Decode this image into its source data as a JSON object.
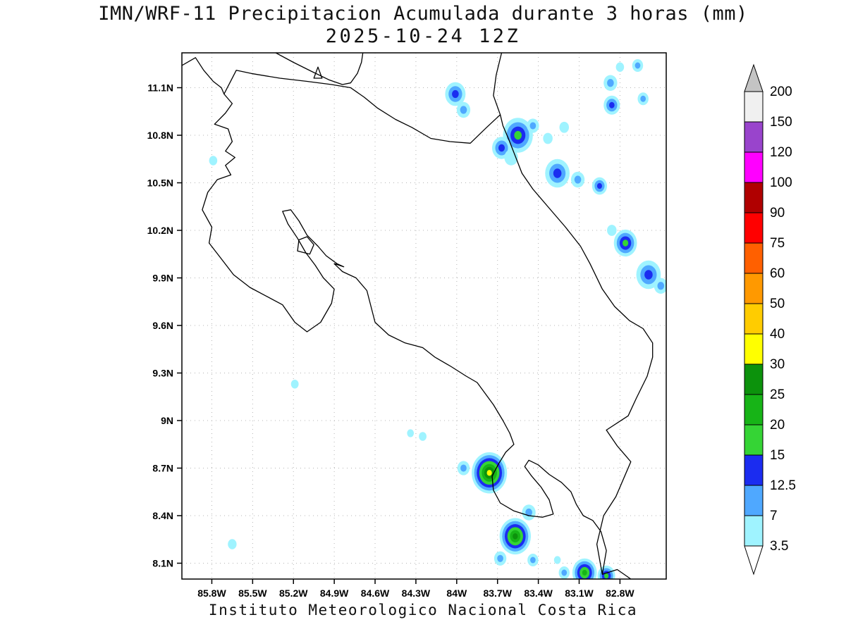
{
  "title": "IMN/WRF-11 Precipitacion Acumulada durante 3 horas (mm)",
  "subtitle": "2025-10-24 12Z",
  "footer": "Instituto Meteorologico Nacional Costa Rica",
  "axes": {
    "x": {
      "labels": [
        "85.8W",
        "85.5W",
        "85.2W",
        "84.9W",
        "84.6W",
        "84.3W",
        "84W",
        "83.7W",
        "83.4W",
        "83.1W",
        "82.8W"
      ],
      "values": [
        -85.8,
        -85.5,
        -85.2,
        -84.9,
        -84.6,
        -84.3,
        -84.0,
        -83.7,
        -83.4,
        -83.1,
        -82.8
      ]
    },
    "y": {
      "labels": [
        "11.1N",
        "10.8N",
        "10.5N",
        "10.2N",
        "9.9N",
        "9.6N",
        "9.3N",
        "9N",
        "8.7N",
        "8.4N",
        "8.1N"
      ],
      "values": [
        11.1,
        10.8,
        10.5,
        10.2,
        9.9,
        9.6,
        9.3,
        9.0,
        8.7,
        8.4,
        8.1
      ]
    },
    "lon_range": [
      -86.02,
      -82.46
    ],
    "lat_range": [
      8.0,
      11.32
    ],
    "grid": "dotted"
  },
  "colorbar": {
    "values": [
      3.5,
      7,
      12.5,
      15,
      20,
      25,
      30,
      40,
      50,
      60,
      75,
      90,
      100,
      120,
      150,
      200
    ],
    "labels": [
      "3.5",
      "7",
      "12.5",
      "15",
      "20",
      "25",
      "30",
      "40",
      "50",
      "60",
      "75",
      "90",
      "100",
      "120",
      "150",
      "200"
    ],
    "interval_colors": [
      "#9ff3ff",
      "#4fa8ff",
      "#1b2cf0",
      "#35d435",
      "#17b417",
      "#0c920c",
      "#ffff00",
      "#ffcc00",
      "#ff9900",
      "#ff6000",
      "#ff0000",
      "#b00000",
      "#ff00ff",
      "#9944cc",
      "#f0f0f0"
    ],
    "below_color": "#ffffff",
    "above_color": "#c4c4c4",
    "units": "mm"
  },
  "chart_data": {
    "type": "heatmap",
    "title": "IMN/WRF-11 Precipitacion Acumulada durante 3 horas (mm)",
    "subtitle": "2025-10-24 12Z",
    "variable": "Precipitacion acumulada 3 horas",
    "units": "mm",
    "valid_time": "2025-10-24 12Z",
    "lon_range": [
      -86.02,
      -82.46
    ],
    "lat_range": [
      8.0,
      11.32
    ],
    "levels": [
      3.5,
      7,
      12.5,
      15,
      20,
      25,
      30,
      40,
      50,
      60,
      75,
      90,
      100,
      120,
      150,
      200
    ],
    "legend_position": "right",
    "cells": [
      {
        "lon": -84.01,
        "lat": 11.06,
        "r": 0.075,
        "max_mm": 12.5
      },
      {
        "lon": -83.95,
        "lat": 10.96,
        "r": 0.05,
        "max_mm": 7
      },
      {
        "lon": -83.55,
        "lat": 10.8,
        "r": 0.11,
        "max_mm": 15
      },
      {
        "lon": -83.67,
        "lat": 10.72,
        "r": 0.07,
        "max_mm": 12.5
      },
      {
        "lon": -83.44,
        "lat": 10.86,
        "r": 0.045,
        "max_mm": 7
      },
      {
        "lon": -83.33,
        "lat": 10.78,
        "r": 0.035,
        "max_mm": 3.5
      },
      {
        "lon": -83.6,
        "lat": 10.66,
        "r": 0.05,
        "max_mm": 3.5
      },
      {
        "lon": -83.21,
        "lat": 10.85,
        "r": 0.035,
        "max_mm": 3.5
      },
      {
        "lon": -83.26,
        "lat": 10.56,
        "r": 0.09,
        "max_mm": 12.5
      },
      {
        "lon": -83.11,
        "lat": 10.52,
        "r": 0.05,
        "max_mm": 7
      },
      {
        "lon": -82.95,
        "lat": 10.48,
        "r": 0.055,
        "max_mm": 12.5
      },
      {
        "lon": -82.87,
        "lat": 11.13,
        "r": 0.05,
        "max_mm": 7
      },
      {
        "lon": -82.86,
        "lat": 10.99,
        "r": 0.06,
        "max_mm": 12.5
      },
      {
        "lon": -82.67,
        "lat": 11.24,
        "r": 0.04,
        "max_mm": 7
      },
      {
        "lon": -82.8,
        "lat": 11.23,
        "r": 0.03,
        "max_mm": 3.5
      },
      {
        "lon": -82.63,
        "lat": 11.03,
        "r": 0.04,
        "max_mm": 7
      },
      {
        "lon": -82.76,
        "lat": 10.12,
        "r": 0.085,
        "max_mm": 15
      },
      {
        "lon": -82.86,
        "lat": 10.2,
        "r": 0.035,
        "max_mm": 3.5
      },
      {
        "lon": -82.59,
        "lat": 9.92,
        "r": 0.09,
        "max_mm": 12.5
      },
      {
        "lon": -82.5,
        "lat": 9.85,
        "r": 0.05,
        "max_mm": 7
      },
      {
        "lon": -85.79,
        "lat": 10.64,
        "r": 0.03,
        "max_mm": 3.5
      },
      {
        "lon": -85.19,
        "lat": 9.23,
        "r": 0.028,
        "max_mm": 3.5
      },
      {
        "lon": -85.65,
        "lat": 8.22,
        "r": 0.032,
        "max_mm": 3.5
      },
      {
        "lon": -83.76,
        "lat": 8.67,
        "r": 0.13,
        "max_mm": 30
      },
      {
        "lon": -83.95,
        "lat": 8.7,
        "r": 0.045,
        "max_mm": 7
      },
      {
        "lon": -84.25,
        "lat": 8.9,
        "r": 0.028,
        "max_mm": 3.5
      },
      {
        "lon": -84.34,
        "lat": 8.92,
        "r": 0.025,
        "max_mm": 3.5
      },
      {
        "lon": -83.57,
        "lat": 8.27,
        "r": 0.115,
        "max_mm": 25
      },
      {
        "lon": -83.47,
        "lat": 8.42,
        "r": 0.05,
        "max_mm": 7
      },
      {
        "lon": -83.68,
        "lat": 8.13,
        "r": 0.045,
        "max_mm": 7
      },
      {
        "lon": -83.44,
        "lat": 8.12,
        "r": 0.04,
        "max_mm": 7
      },
      {
        "lon": -83.06,
        "lat": 8.04,
        "r": 0.09,
        "max_mm": 20
      },
      {
        "lon": -82.9,
        "lat": 8.02,
        "r": 0.065,
        "max_mm": 15
      },
      {
        "lon": -83.21,
        "lat": 8.04,
        "r": 0.04,
        "max_mm": 7
      },
      {
        "lon": -83.26,
        "lat": 8.12,
        "r": 0.025,
        "max_mm": 3.5
      }
    ]
  },
  "geo": {
    "layers": [
      {
        "name": "nicaragua-pacific-coast",
        "closed": false,
        "points": [
          [
            -86.02,
            11.24
          ],
          [
            -85.92,
            11.29
          ],
          [
            -85.86,
            11.21
          ],
          [
            -85.79,
            11.14
          ],
          [
            -85.73,
            11.1
          ],
          [
            -85.71,
            11.06
          ]
        ]
      },
      {
        "name": "costa-rica-outline",
        "closed": true,
        "points": [
          [
            -85.71,
            11.06
          ],
          [
            -85.65,
            11.0
          ],
          [
            -85.7,
            10.94
          ],
          [
            -85.78,
            10.87
          ],
          [
            -85.68,
            10.84
          ],
          [
            -85.65,
            10.76
          ],
          [
            -85.7,
            10.7
          ],
          [
            -85.63,
            10.66
          ],
          [
            -85.7,
            10.61
          ],
          [
            -85.66,
            10.55
          ],
          [
            -85.76,
            10.52
          ],
          [
            -85.83,
            10.44
          ],
          [
            -85.87,
            10.33
          ],
          [
            -85.8,
            10.22
          ],
          [
            -85.82,
            10.12
          ],
          [
            -85.73,
            10.02
          ],
          [
            -85.64,
            9.92
          ],
          [
            -85.52,
            9.84
          ],
          [
            -85.41,
            9.79
          ],
          [
            -85.28,
            9.73
          ],
          [
            -85.19,
            9.62
          ],
          [
            -85.1,
            9.56
          ],
          [
            -85.0,
            9.62
          ],
          [
            -84.92,
            9.74
          ],
          [
            -84.9,
            9.83
          ],
          [
            -84.98,
            9.9
          ],
          [
            -85.04,
            9.98
          ],
          [
            -85.11,
            10.06
          ],
          [
            -85.17,
            10.15
          ],
          [
            -85.24,
            10.24
          ],
          [
            -85.28,
            10.32
          ],
          [
            -85.22,
            10.33
          ],
          [
            -85.16,
            10.26
          ],
          [
            -85.1,
            10.17
          ],
          [
            -85.02,
            10.1
          ],
          [
            -84.96,
            10.04
          ],
          [
            -84.88,
            9.99
          ],
          [
            -84.83,
            9.97
          ],
          [
            -84.9,
            9.99
          ],
          [
            -84.84,
            9.94
          ],
          [
            -84.74,
            9.9
          ],
          [
            -84.66,
            9.82
          ],
          [
            -84.63,
            9.72
          ],
          [
            -84.6,
            9.62
          ],
          [
            -84.5,
            9.54
          ],
          [
            -84.38,
            9.49
          ],
          [
            -84.25,
            9.46
          ],
          [
            -84.16,
            9.4
          ],
          [
            -84.04,
            9.34
          ],
          [
            -83.93,
            9.28
          ],
          [
            -83.85,
            9.24
          ],
          [
            -83.73,
            9.1
          ],
          [
            -83.66,
            9.0
          ],
          [
            -83.61,
            8.92
          ],
          [
            -83.58,
            8.85
          ],
          [
            -83.64,
            8.8
          ],
          [
            -83.69,
            8.73
          ],
          [
            -83.74,
            8.65
          ],
          [
            -83.73,
            8.56
          ],
          [
            -83.68,
            8.48
          ],
          [
            -83.58,
            8.43
          ],
          [
            -83.47,
            8.4
          ],
          [
            -83.37,
            8.39
          ],
          [
            -83.29,
            8.41
          ],
          [
            -83.32,
            8.5
          ],
          [
            -83.38,
            8.58
          ],
          [
            -83.45,
            8.65
          ],
          [
            -83.5,
            8.71
          ],
          [
            -83.47,
            8.75
          ],
          [
            -83.4,
            8.72
          ],
          [
            -83.32,
            8.66
          ],
          [
            -83.23,
            8.61
          ],
          [
            -83.16,
            8.55
          ],
          [
            -83.12,
            8.47
          ],
          [
            -83.07,
            8.4
          ],
          [
            -83.0,
            8.37
          ],
          [
            -82.94,
            8.3
          ],
          [
            -82.9,
            8.18
          ],
          [
            -82.93,
            8.03
          ],
          [
            -82.97,
            8.22
          ],
          [
            -82.92,
            8.4
          ],
          [
            -82.83,
            8.52
          ],
          [
            -82.72,
            8.74
          ],
          [
            -82.82,
            8.84
          ],
          [
            -82.9,
            8.94
          ],
          [
            -82.74,
            9.03
          ],
          [
            -82.68,
            9.14
          ],
          [
            -82.6,
            9.28
          ],
          [
            -82.56,
            9.4
          ],
          [
            -82.56,
            9.49
          ],
          [
            -82.63,
            9.58
          ],
          [
            -82.73,
            9.63
          ],
          [
            -82.84,
            9.72
          ],
          [
            -82.93,
            9.83
          ],
          [
            -83.02,
            9.99
          ],
          [
            -83.09,
            10.1
          ],
          [
            -83.2,
            10.22
          ],
          [
            -83.32,
            10.34
          ],
          [
            -83.44,
            10.46
          ],
          [
            -83.52,
            10.56
          ],
          [
            -83.57,
            10.67
          ],
          [
            -83.62,
            10.78
          ],
          [
            -83.66,
            10.86
          ],
          [
            -83.68,
            10.93
          ],
          [
            -83.78,
            10.85
          ],
          [
            -83.9,
            10.75
          ],
          [
            -84.05,
            10.76
          ],
          [
            -84.19,
            10.78
          ],
          [
            -84.33,
            10.85
          ],
          [
            -84.45,
            10.9
          ],
          [
            -84.58,
            10.97
          ],
          [
            -84.68,
            11.04
          ],
          [
            -84.78,
            11.1
          ],
          [
            -84.92,
            11.12
          ],
          [
            -85.1,
            11.14
          ],
          [
            -85.3,
            11.16
          ],
          [
            -85.51,
            11.19
          ],
          [
            -85.62,
            11.21
          ]
        ]
      },
      {
        "name": "lake-nicaragua-shore",
        "closed": false,
        "points": [
          [
            -85.33,
            11.32
          ],
          [
            -85.2,
            11.26
          ],
          [
            -85.06,
            11.2
          ],
          [
            -84.94,
            11.15
          ],
          [
            -84.84,
            11.12
          ],
          [
            -84.78,
            11.13
          ],
          [
            -84.73,
            11.19
          ],
          [
            -84.7,
            11.26
          ],
          [
            -84.69,
            11.32
          ]
        ]
      },
      {
        "name": "lake-island",
        "closed": true,
        "points": [
          [
            -85.05,
            11.16
          ],
          [
            -84.99,
            11.16
          ],
          [
            -85.02,
            11.23
          ]
        ]
      },
      {
        "name": "nicaragua-caribbean-coast",
        "closed": false,
        "points": [
          [
            -83.68,
            10.93
          ],
          [
            -83.73,
            11.05
          ],
          [
            -83.71,
            11.18
          ],
          [
            -83.67,
            11.32
          ]
        ]
      },
      {
        "name": "isla-chira",
        "closed": true,
        "points": [
          [
            -85.17,
            10.07
          ],
          [
            -85.08,
            10.05
          ],
          [
            -85.05,
            10.11
          ],
          [
            -85.1,
            10.16
          ],
          [
            -85.16,
            10.14
          ]
        ]
      },
      {
        "name": "panama-coast",
        "closed": false,
        "points": [
          [
            -82.93,
            8.03
          ],
          [
            -82.82,
            8.06
          ],
          [
            -82.72,
            8.0
          ]
        ]
      }
    ]
  }
}
